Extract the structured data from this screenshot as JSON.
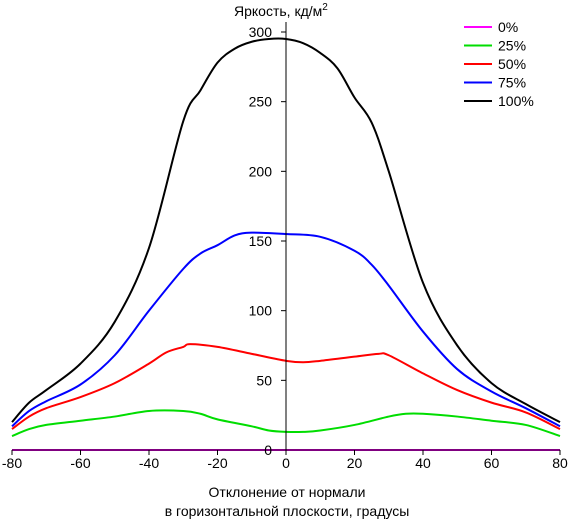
{
  "chart_data": {
    "type": "line",
    "title": "",
    "ylabel": "Яркость, кд/м",
    "ylabel_superscript": "2",
    "xlabel_lines": [
      "Отклонение от нормали",
      "в горизонтальной плоскости, градусы"
    ],
    "xlim": [
      -80,
      80
    ],
    "ylim": [
      0,
      300
    ],
    "x_ticks": [
      -80,
      -60,
      -40,
      -20,
      0,
      20,
      40,
      60,
      80
    ],
    "y_ticks": [
      0,
      50,
      100,
      150,
      200,
      250,
      300
    ],
    "grid": false,
    "legend_position": "top-right",
    "series": [
      {
        "name": "0%",
        "color": "#ff00ff",
        "points": [
          [
            -80,
            0
          ],
          [
            -60,
            0
          ],
          [
            -40,
            0
          ],
          [
            -20,
            0
          ],
          [
            0,
            0
          ],
          [
            20,
            0
          ],
          [
            40,
            0
          ],
          [
            60,
            0
          ],
          [
            80,
            0
          ]
        ]
      },
      {
        "name": "25%",
        "color": "#00dd00",
        "points": [
          [
            -80,
            10
          ],
          [
            -75,
            15
          ],
          [
            -70,
            18
          ],
          [
            -60,
            21
          ],
          [
            -50,
            24
          ],
          [
            -40,
            28
          ],
          [
            -30,
            28
          ],
          [
            -25,
            26
          ],
          [
            -20,
            22
          ],
          [
            -10,
            17
          ],
          [
            -5,
            14
          ],
          [
            0,
            13
          ],
          [
            5,
            13
          ],
          [
            10,
            14
          ],
          [
            20,
            18
          ],
          [
            30,
            24
          ],
          [
            35,
            26
          ],
          [
            40,
            26
          ],
          [
            50,
            24
          ],
          [
            60,
            21
          ],
          [
            70,
            18
          ],
          [
            80,
            10
          ]
        ]
      },
      {
        "name": "50%",
        "color": "#ff0000",
        "points": [
          [
            -80,
            15
          ],
          [
            -75,
            24
          ],
          [
            -70,
            30
          ],
          [
            -60,
            38
          ],
          [
            -50,
            48
          ],
          [
            -40,
            62
          ],
          [
            -35,
            70
          ],
          [
            -30,
            74
          ],
          [
            -28,
            76
          ],
          [
            -20,
            74
          ],
          [
            -10,
            69
          ],
          [
            0,
            64
          ],
          [
            5,
            63
          ],
          [
            10,
            64
          ],
          [
            20,
            67
          ],
          [
            27,
            69
          ],
          [
            30,
            68
          ],
          [
            40,
            55
          ],
          [
            50,
            43
          ],
          [
            60,
            34
          ],
          [
            70,
            27
          ],
          [
            80,
            15
          ]
        ]
      },
      {
        "name": "75%",
        "color": "#0000ff",
        "points": [
          [
            -80,
            17
          ],
          [
            -75,
            28
          ],
          [
            -70,
            35
          ],
          [
            -60,
            47
          ],
          [
            -50,
            68
          ],
          [
            -40,
            100
          ],
          [
            -30,
            130
          ],
          [
            -25,
            141
          ],
          [
            -20,
            147
          ],
          [
            -15,
            154
          ],
          [
            -10,
            156
          ],
          [
            0,
            155
          ],
          [
            10,
            153
          ],
          [
            20,
            143
          ],
          [
            25,
            133
          ],
          [
            30,
            118
          ],
          [
            40,
            85
          ],
          [
            50,
            58
          ],
          [
            60,
            42
          ],
          [
            70,
            30
          ],
          [
            80,
            17
          ]
        ]
      },
      {
        "name": "100%",
        "color": "#000000",
        "points": [
          [
            -80,
            20
          ],
          [
            -75,
            34
          ],
          [
            -70,
            43
          ],
          [
            -60,
            62
          ],
          [
            -50,
            92
          ],
          [
            -40,
            145
          ],
          [
            -30,
            236
          ],
          [
            -25,
            258
          ],
          [
            -20,
            278
          ],
          [
            -15,
            288
          ],
          [
            -10,
            293
          ],
          [
            -5,
            295
          ],
          [
            0,
            295
          ],
          [
            5,
            292
          ],
          [
            10,
            285
          ],
          [
            15,
            274
          ],
          [
            20,
            253
          ],
          [
            25,
            235
          ],
          [
            30,
            200
          ],
          [
            40,
            120
          ],
          [
            50,
            75
          ],
          [
            60,
            48
          ],
          [
            70,
            33
          ],
          [
            80,
            20
          ]
        ]
      }
    ]
  }
}
